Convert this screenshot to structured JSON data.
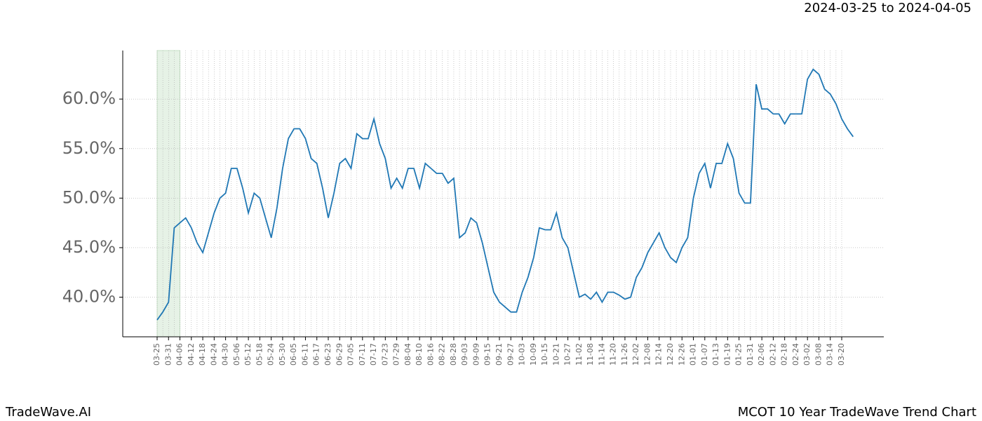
{
  "chart_data": {
    "type": "line",
    "subtitle": "2024-03-25 to 2024-04-05",
    "footer_left": "TradeWave.AI",
    "footer_right": "MCOT 10 Year TradeWave Trend Chart",
    "categories": [
      "03-25",
      null,
      "03-31",
      null,
      "04-06",
      null,
      "04-12",
      null,
      "04-18",
      null,
      "04-24",
      null,
      "04-30",
      null,
      "05-06",
      null,
      "05-12",
      null,
      "05-18",
      null,
      "05-24",
      null,
      "05-30",
      null,
      "06-05",
      null,
      "06-11",
      null,
      "06-17",
      null,
      "06-23",
      null,
      "06-29",
      null,
      "07-05",
      null,
      "07-11",
      null,
      "07-17",
      null,
      "07-23",
      null,
      "07-29",
      null,
      "08-04",
      null,
      "08-10",
      null,
      "08-16",
      null,
      "08-22",
      null,
      "08-28",
      null,
      "09-03",
      null,
      "09-09",
      null,
      "09-15",
      null,
      "09-21",
      null,
      "09-27",
      null,
      "10-03",
      null,
      "10-09",
      null,
      "10-15",
      null,
      "10-21",
      null,
      "10-27",
      null,
      "11-02",
      null,
      "11-08",
      null,
      "11-14",
      null,
      "11-20",
      null,
      "11-26",
      null,
      "12-02",
      null,
      "12-08",
      null,
      "12-14",
      null,
      "12-20",
      null,
      "12-26",
      null,
      "01-01",
      null,
      "01-07",
      null,
      "01-13",
      null,
      "01-19",
      null,
      "01-25",
      null,
      "01-31",
      null,
      "02-06",
      null,
      "02-12",
      null,
      "02-18",
      null,
      "02-24",
      null,
      "03-02",
      null,
      "03-08",
      null,
      "03-14",
      null,
      "03-20",
      null,
      null
    ],
    "values": [
      37.7,
      38.5,
      39.5,
      47,
      47.5,
      48,
      47,
      45.5,
      44.5,
      46.5,
      48.5,
      50,
      50.5,
      53,
      53,
      51,
      48.5,
      50.5,
      50,
      48,
      46,
      49,
      53,
      56,
      57,
      57,
      56,
      54,
      53.5,
      51,
      48,
      50.5,
      53.5,
      54,
      53,
      56.5,
      56,
      56,
      58,
      55.5,
      54,
      51,
      52,
      51,
      53,
      53,
      51,
      53.5,
      53,
      52.5,
      52.5,
      51.5,
      52,
      46,
      46.5,
      48,
      47.5,
      45.5,
      43,
      40.5,
      39.5,
      39,
      38.5,
      38.5,
      40.5,
      42,
      44,
      47,
      46.8,
      46.8,
      48.5,
      46,
      45,
      42.5,
      40,
      40.3,
      39.8,
      40.5,
      39.5,
      40.5,
      40.5,
      40.2,
      39.8,
      40,
      42,
      43,
      44.5,
      45.5,
      46.5,
      45,
      44,
      43.5,
      45,
      46,
      50,
      52.5,
      53.5,
      51,
      53.5,
      53.5,
      55.5,
      54,
      50.5,
      49.5,
      49.5,
      61.5,
      59,
      59,
      58.5,
      58.5,
      57.5,
      58.5,
      58.5,
      58.5,
      62,
      63,
      62.5,
      61,
      60.5,
      59.5,
      58,
      57,
      56.2
    ],
    "color": "#1f77b4",
    "highlight": {
      "from": 0,
      "to": 4,
      "color": "#e6f2e6"
    },
    "ylim": [
      36,
      64.9
    ],
    "yticks": [
      {
        "value": 40,
        "label": "40.0%"
      },
      {
        "value": 45,
        "label": "45.0%"
      },
      {
        "value": 50,
        "label": "50.0%"
      },
      {
        "value": 55,
        "label": "55.0%"
      },
      {
        "value": 60,
        "label": "60.0%"
      }
    ],
    "grid": true
  }
}
